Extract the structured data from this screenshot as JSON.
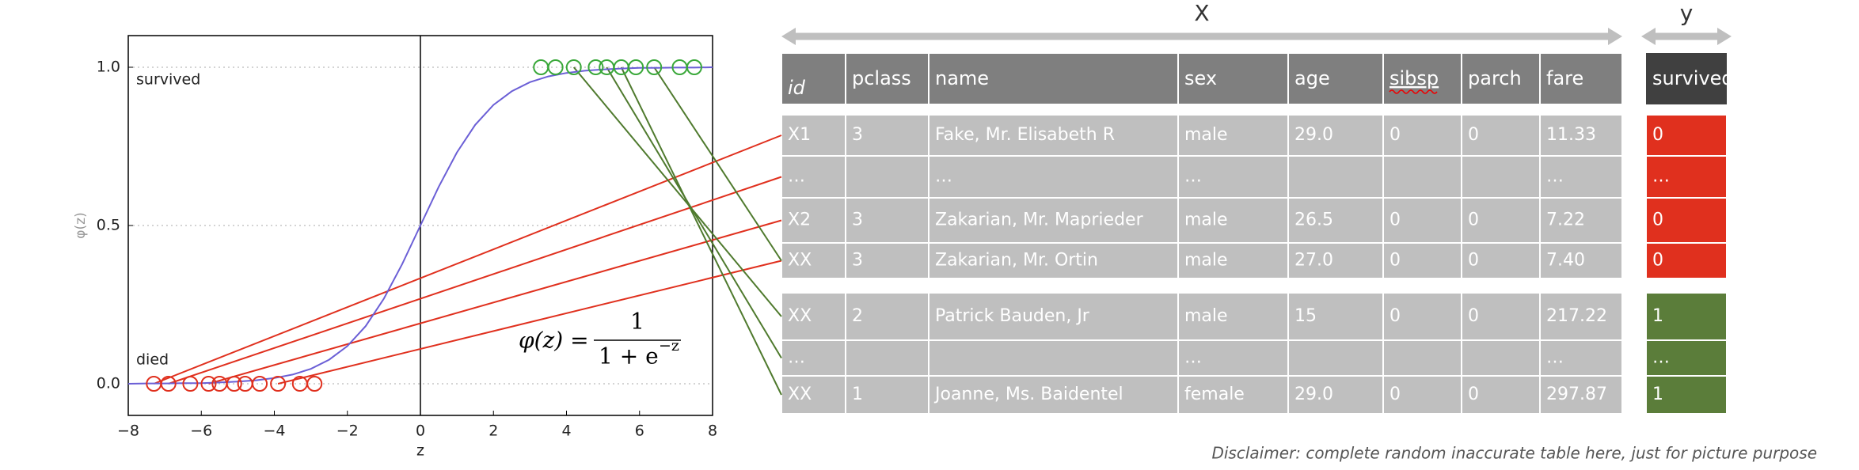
{
  "chart_data": {
    "type": "line",
    "xlabel": "z",
    "ylabel": "φ(z)",
    "xlim": [
      -8,
      8
    ],
    "ylim": [
      -0.1,
      1.1
    ],
    "xticks": [
      {
        "value": -8,
        "label": "−8"
      },
      {
        "value": -6,
        "label": "−6"
      },
      {
        "value": -4,
        "label": "−4"
      },
      {
        "value": -2,
        "label": "−2"
      },
      0,
      2,
      4,
      6,
      8
    ],
    "yticks": [
      {
        "value": 0,
        "label": "0.0"
      },
      0.5,
      {
        "value": 1,
        "label": "1.0"
      }
    ],
    "grid": true,
    "annotations": {
      "upper": "survived",
      "lower": "died"
    },
    "formula": {
      "lhs": "φ(z) =",
      "numerator": "1",
      "denominator": "1 + e",
      "exponent": "−z"
    },
    "series": [
      {
        "type": "line",
        "color": "#6b5fd6",
        "x": [
          -8,
          -7.5,
          -7,
          -6.5,
          -6,
          -5.5,
          -5,
          -4.5,
          -4,
          -3.5,
          -3,
          -2.5,
          -2,
          -1.5,
          -1,
          -0.5,
          0,
          0.5,
          1,
          1.5,
          2,
          2.5,
          3,
          3.5,
          4,
          4.5,
          5,
          5.5,
          6,
          6.5,
          7,
          7.5,
          8
        ],
        "values": [
          0.0,
          0.001,
          0.001,
          0.002,
          0.002,
          0.004,
          0.007,
          0.011,
          0.018,
          0.029,
          0.047,
          0.076,
          0.119,
          0.182,
          0.269,
          0.378,
          0.5,
          0.622,
          0.731,
          0.818,
          0.881,
          0.924,
          0.953,
          0.971,
          0.982,
          0.989,
          0.993,
          0.996,
          0.998,
          0.998,
          0.999,
          0.999,
          1.0
        ]
      },
      {
        "type": "scatter",
        "color": "#e0301e",
        "x": [
          -7.3,
          -6.9,
          -6.3,
          -5.8,
          -5.5,
          -5.1,
          -4.8,
          -4.4,
          -3.9,
          -3.3,
          -2.9
        ],
        "values": [
          0,
          0,
          0,
          0,
          0,
          0,
          0,
          0,
          0,
          0,
          0
        ]
      },
      {
        "type": "scatter",
        "color": "#3aa83a",
        "x": [
          3.3,
          3.7,
          4.2,
          4.8,
          5.1,
          5.5,
          5.9,
          6.4,
          7.1,
          7.5
        ],
        "values": [
          1,
          1,
          1,
          1,
          1,
          1,
          1,
          1,
          1,
          1
        ]
      }
    ]
  },
  "table": {
    "x_label": "X",
    "y_label": "y",
    "columns": [
      "id",
      "pclass",
      "name",
      "sex",
      "age",
      "sibsp",
      "parch",
      "fare"
    ],
    "target_column": "survived",
    "groups": [
      {
        "color": "#e0301e",
        "rows": [
          [
            "X1",
            "3",
            "Fake, Mr. Elisabeth R",
            "male",
            "29.0",
            "0",
            "0",
            "11.33"
          ],
          [
            "…",
            null,
            "…",
            "…",
            null,
            null,
            null,
            "…"
          ],
          [
            "X2",
            "3",
            "Zakarian, Mr. Maprieder",
            "male",
            "26.5",
            "0",
            "0",
            "7.22"
          ],
          [
            "XX",
            "3",
            "Zakarian, Mr. Ortin",
            "male",
            "27.0",
            "0",
            "0",
            "7.40"
          ]
        ],
        "targets": [
          "0",
          "…",
          "0",
          "0"
        ]
      },
      {
        "color": "#5b7d3a",
        "rows": [
          [
            "XX",
            "2",
            "Patrick Bauden, Jr",
            "male",
            "15",
            "0",
            "0",
            "217.22"
          ],
          [
            "…",
            null,
            null,
            "…",
            null,
            null,
            null,
            "…"
          ],
          [
            "XX",
            "1",
            "Joanne, Ms. Baidentel",
            "female",
            "29.0",
            "0",
            "0",
            "297.87"
          ]
        ],
        "targets": [
          "1",
          "…",
          "1"
        ]
      }
    ]
  },
  "disclaimer": "Disclaimer: complete random inaccurate table here, just for picture purpose"
}
